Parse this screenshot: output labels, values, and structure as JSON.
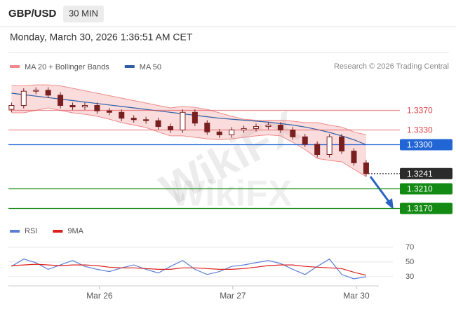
{
  "header": {
    "symbol": "GBP/USD",
    "timeframe": "30 MIN",
    "datetime": "Monday, March 30, 2026 1:36:51 AM CET"
  },
  "watermark": "WikiFX",
  "chart_data": [
    {
      "type": "candlestick",
      "credit": "Research © 2026 Trading Central",
      "candle_color": "#7a1f1f",
      "open": [
        1.3372,
        1.338,
        1.3409,
        1.3411,
        1.3401,
        1.338,
        1.3377,
        1.338,
        1.3369,
        1.3366,
        1.3354,
        1.3351,
        1.3349,
        1.3337,
        1.333,
        1.3366,
        1.3344,
        1.3326,
        1.332,
        1.333,
        1.3333,
        1.3337,
        1.334,
        1.333,
        1.3316,
        1.3301,
        1.328,
        1.3316,
        1.3287,
        1.3263
      ],
      "high": [
        1.3386,
        1.3415,
        1.3417,
        1.3417,
        1.3407,
        1.3386,
        1.3386,
        1.3386,
        1.3375,
        1.3372,
        1.336,
        1.3357,
        1.3355,
        1.3343,
        1.3372,
        1.3372,
        1.335,
        1.3332,
        1.3336,
        1.3339,
        1.3343,
        1.3346,
        1.3346,
        1.3336,
        1.3322,
        1.3307,
        1.3322,
        1.3322,
        1.3293,
        1.3269
      ],
      "low": [
        1.3366,
        1.3374,
        1.3403,
        1.3395,
        1.3374,
        1.3371,
        1.3371,
        1.3363,
        1.336,
        1.3348,
        1.3345,
        1.3343,
        1.3331,
        1.3324,
        1.3324,
        1.3338,
        1.332,
        1.3314,
        1.3314,
        1.3324,
        1.3327,
        1.3331,
        1.3324,
        1.331,
        1.3295,
        1.3274,
        1.3274,
        1.3281,
        1.3257,
        1.3235
      ],
      "close": [
        1.338,
        1.3409,
        1.3411,
        1.3401,
        1.338,
        1.3377,
        1.338,
        1.3369,
        1.3366,
        1.3354,
        1.3351,
        1.3349,
        1.3337,
        1.333,
        1.3366,
        1.3344,
        1.3326,
        1.332,
        1.333,
        1.3333,
        1.3337,
        1.334,
        1.333,
        1.3316,
        1.3301,
        1.328,
        1.3316,
        1.3287,
        1.3263,
        1.3241
      ],
      "overlays": [
        {
          "name": "MA 20 + Bollinger Bands",
          "color": "#f08a8a",
          "upper": [
            1.342,
            1.342,
            1.3422,
            1.3422,
            1.342,
            1.3415,
            1.341,
            1.3405,
            1.34,
            1.3395,
            1.339,
            1.3385,
            1.338,
            1.3375,
            1.3378,
            1.3376,
            1.3372,
            1.3365,
            1.3358,
            1.3352,
            1.335,
            1.335,
            1.335,
            1.3348,
            1.3345,
            1.3345,
            1.334,
            1.3336,
            1.3326,
            1.332
          ],
          "lower": [
            1.3365,
            1.3365,
            1.337,
            1.3375,
            1.337,
            1.3365,
            1.3362,
            1.3358,
            1.3352,
            1.3345,
            1.334,
            1.3335,
            1.3326,
            1.3318,
            1.3318,
            1.3315,
            1.3312,
            1.331,
            1.3312,
            1.3315,
            1.3318,
            1.332,
            1.3318,
            1.3305,
            1.329,
            1.3272,
            1.3268,
            1.3265,
            1.325,
            1.3235
          ]
        },
        {
          "name": "MA 50",
          "color": "#2e5fa3",
          "values": [
            1.3405,
            1.3402,
            1.3399,
            1.3396,
            1.3393,
            1.339,
            1.3387,
            1.3384,
            1.3381,
            1.3378,
            1.3375,
            1.3372,
            1.3369,
            1.3366,
            1.3363,
            1.336,
            1.3357,
            1.3354,
            1.3352,
            1.335,
            1.3348,
            1.3346,
            1.3343,
            1.334,
            1.3336,
            1.3331,
            1.3325,
            1.3318,
            1.331,
            1.33
          ]
        }
      ],
      "levels": [
        {
          "value": 1.337,
          "label": "1.3370",
          "color": "#e0454a",
          "boxed": false,
          "style": "solid"
        },
        {
          "value": 1.333,
          "label": "1.3330",
          "color": "#e0454a",
          "boxed": false,
          "style": "solid"
        },
        {
          "value": 1.33,
          "label": "1.3300",
          "color": "#2266d6",
          "boxed": true,
          "style": "solid"
        },
        {
          "value": 1.3241,
          "label": "1.3241",
          "color": "#2b2b2b",
          "boxed": true,
          "style": "dotted"
        },
        {
          "value": 1.321,
          "label": "1.3210",
          "color": "#138a13",
          "boxed": true,
          "style": "solid"
        },
        {
          "value": 1.317,
          "label": "1.3170",
          "color": "#138a13",
          "boxed": true,
          "style": "solid"
        }
      ],
      "xlim": [
        -0.25,
        29.75
      ],
      "ylim": [
        1.315,
        1.343
      ]
    },
    {
      "type": "line",
      "series": [
        {
          "name": "RSI",
          "color": "#5b7fd6",
          "values": [
            44,
            54,
            49,
            40,
            46,
            52,
            44,
            40,
            37,
            42,
            46,
            40,
            35,
            44,
            52,
            40,
            33,
            37,
            44,
            46,
            49,
            52,
            48,
            40,
            33,
            44,
            54,
            33,
            27,
            30
          ]
        },
        {
          "name": "9MA",
          "color": "#d9201c",
          "values": [
            45,
            46,
            47,
            46,
            45,
            46,
            46,
            45,
            43,
            42,
            42,
            41,
            40,
            40,
            42,
            42,
            41,
            40,
            40,
            41,
            43,
            45,
            46,
            46,
            44,
            43,
            42,
            41,
            36,
            32
          ]
        }
      ],
      "xlim": [
        -0.25,
        29.75
      ],
      "ylim": [
        20,
        78
      ],
      "yticks": [
        70,
        50,
        30
      ],
      "xticks": [
        {
          "value": 7.2,
          "label": "Mar 26"
        },
        {
          "value": 18.1,
          "label": "Mar 27"
        },
        {
          "value": 28.2,
          "label": "Mar 30"
        }
      ]
    }
  ]
}
